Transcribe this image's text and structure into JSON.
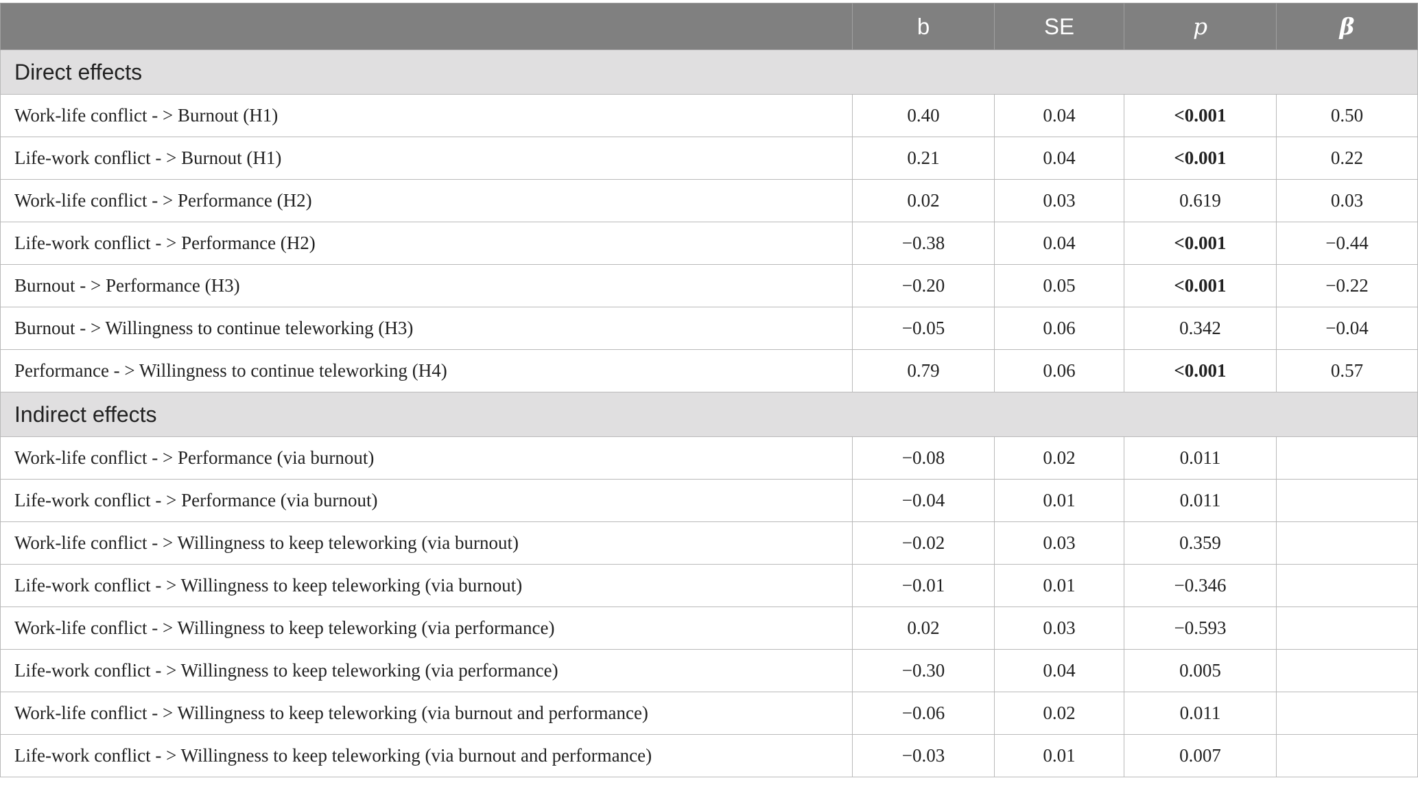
{
  "header": {
    "label": "",
    "b": "b",
    "se": "SE",
    "p": "p",
    "beta": "β"
  },
  "sections": [
    {
      "title": "Direct effects",
      "rows": [
        {
          "label": "Work-life conflict - > Burnout (H1)",
          "b": "0.40",
          "se": "0.04",
          "p": "<0.001",
          "p_bold": true,
          "beta": "0.50"
        },
        {
          "label": "Life-work conflict - > Burnout (H1)",
          "b": "0.21",
          "se": "0.04",
          "p": "<0.001",
          "p_bold": true,
          "beta": "0.22"
        },
        {
          "label": "Work-life conflict - > Performance (H2)",
          "b": "0.02",
          "se": "0.03",
          "p": "0.619",
          "p_bold": false,
          "beta": "0.03"
        },
        {
          "label": "Life-work conflict - > Performance (H2)",
          "b": "−0.38",
          "se": "0.04",
          "p": "<0.001",
          "p_bold": true,
          "beta": "−0.44"
        },
        {
          "label": "Burnout - > Performance (H3)",
          "b": "−0.20",
          "se": "0.05",
          "p": "<0.001",
          "p_bold": true,
          "beta": "−0.22"
        },
        {
          "label": "Burnout - > Willingness to continue teleworking (H3)",
          "b": "−0.05",
          "se": "0.06",
          "p": "0.342",
          "p_bold": false,
          "beta": "−0.04"
        },
        {
          "label": "Performance - > Willingness to continue teleworking (H4)",
          "b": "0.79",
          "se": "0.06",
          "p": "<0.001",
          "p_bold": true,
          "beta": "0.57"
        }
      ]
    },
    {
      "title": "Indirect effects",
      "rows": [
        {
          "label": "Work-life conflict - > Performance (via burnout)",
          "b": "−0.08",
          "se": "0.02",
          "p": "0.011",
          "p_bold": false,
          "beta": ""
        },
        {
          "label": "Life-work conflict - > Performance (via burnout)",
          "b": "−0.04",
          "se": "0.01",
          "p": "0.011",
          "p_bold": false,
          "beta": ""
        },
        {
          "label": "Work-life conflict - > Willingness to keep teleworking (via burnout)",
          "b": "−0.02",
          "se": "0.03",
          "p": "0.359",
          "p_bold": false,
          "beta": ""
        },
        {
          "label": "Life-work conflict - > Willingness to keep teleworking (via burnout)",
          "b": "−0.01",
          "se": "0.01",
          "p": "−0.346",
          "p_bold": false,
          "beta": ""
        },
        {
          "label": "Work-life conflict - > Willingness to keep teleworking (via performance)",
          "b": "0.02",
          "se": "0.03",
          "p": "−0.593",
          "p_bold": false,
          "beta": ""
        },
        {
          "label": "Life-work conflict - > Willingness to keep teleworking (via performance)",
          "b": "−0.30",
          "se": "0.04",
          "p": "0.005",
          "p_bold": false,
          "beta": ""
        },
        {
          "label": "Work-life conflict - > Willingness to keep teleworking (via burnout and performance)",
          "b": "−0.06",
          "se": "0.02",
          "p": "0.011",
          "p_bold": false,
          "beta": ""
        },
        {
          "label": "Life-work conflict - > Willingness to keep teleworking (via burnout and performance)",
          "b": "−0.03",
          "se": "0.01",
          "p": "0.007",
          "p_bold": false,
          "beta": ""
        }
      ]
    }
  ]
}
